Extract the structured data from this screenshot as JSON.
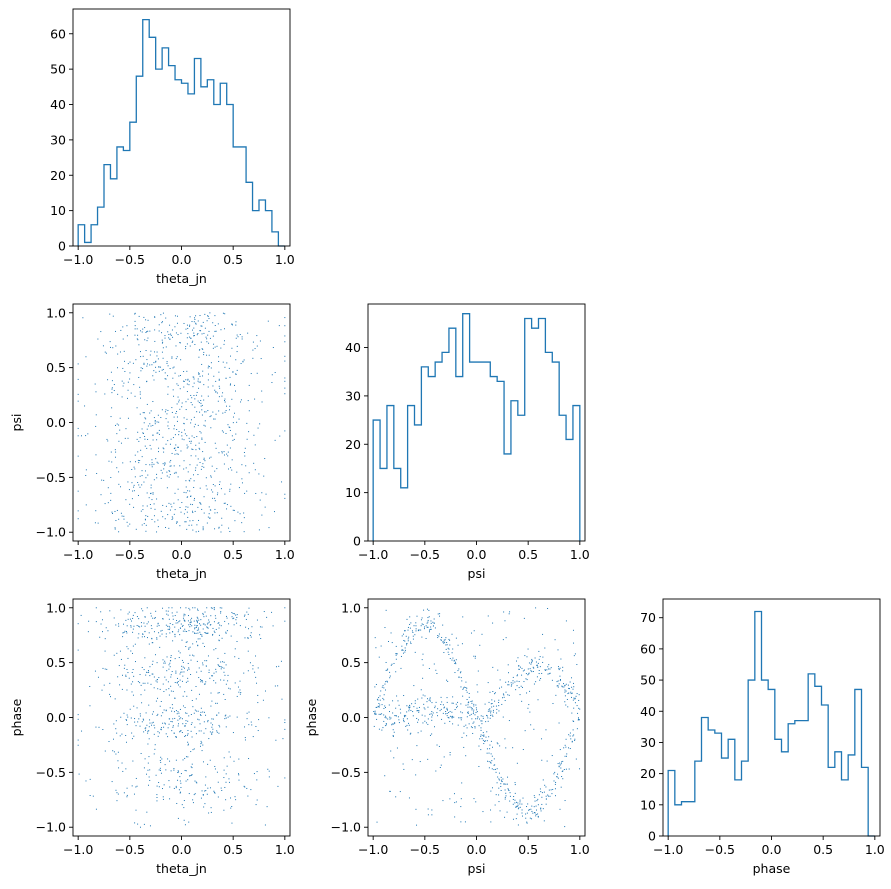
{
  "chart_data": [
    {
      "id": "hist-theta_jn",
      "type": "histogram",
      "xlabel": "theta_jn",
      "ylabel": "",
      "xlim": [
        -1.05,
        1.05
      ],
      "ylim": [
        0,
        67
      ],
      "xticks": [
        -1.0,
        -0.5,
        0.0,
        0.5,
        1.0
      ],
      "xtick_labels": [
        "−1.0",
        "−0.5",
        "0.0",
        "0.5",
        "1.0"
      ],
      "yticks": [
        0,
        10,
        20,
        30,
        40,
        50,
        60
      ],
      "ytick_labels": [
        "0",
        "10",
        "20",
        "30",
        "40",
        "50",
        "60"
      ],
      "bin_range": [
        -1.0,
        1.0
      ],
      "counts": [
        6,
        1,
        6,
        11,
        23,
        19,
        28,
        27,
        35,
        48,
        64,
        59,
        50,
        56,
        51,
        47,
        46,
        43,
        53,
        45,
        47,
        40,
        46,
        40,
        28,
        28,
        18,
        10,
        13,
        10,
        4,
        0
      ],
      "color": "#1f77b4"
    },
    {
      "id": "hist-psi",
      "type": "histogram",
      "xlabel": "psi",
      "ylabel": "",
      "xlim": [
        -1.05,
        1.05
      ],
      "ylim": [
        0,
        49
      ],
      "xticks": [
        -1.0,
        -0.5,
        0.0,
        0.5,
        1.0
      ],
      "xtick_labels": [
        "−1.0",
        "−0.5",
        "0.0",
        "0.5",
        "1.0"
      ],
      "yticks": [
        0,
        10,
        20,
        30,
        40
      ],
      "ytick_labels": [
        "0",
        "10",
        "20",
        "30",
        "40"
      ],
      "bin_range": [
        -1.0,
        1.0
      ],
      "counts": [
        25,
        15,
        28,
        15,
        11,
        28,
        24,
        36,
        34,
        37,
        39,
        44,
        34,
        47,
        37,
        37,
        37,
        34,
        33,
        18,
        29,
        26,
        46,
        44,
        46,
        39,
        37,
        26,
        21,
        28
      ],
      "color": "#1f77b4"
    },
    {
      "id": "hist-phase",
      "type": "histogram",
      "xlabel": "phase",
      "ylabel": "",
      "xlim": [
        -1.05,
        1.05
      ],
      "ylim": [
        0,
        76
      ],
      "xticks": [
        -1.0,
        -0.5,
        0.0,
        0.5,
        1.0
      ],
      "xtick_labels": [
        "−1.0",
        "−0.5",
        "0.0",
        "0.5",
        "1.0"
      ],
      "yticks": [
        0,
        10,
        20,
        30,
        40,
        50,
        60,
        70
      ],
      "ytick_labels": [
        "0",
        "10",
        "20",
        "30",
        "40",
        "50",
        "60",
        "70"
      ],
      "bin_range": [
        -1.0,
        1.0
      ],
      "counts": [
        21,
        10,
        11,
        11,
        24,
        38,
        34,
        33,
        25,
        31,
        18,
        24,
        50,
        72,
        50,
        47,
        31,
        27,
        36,
        37,
        37,
        52,
        48,
        42,
        22,
        27,
        18,
        26,
        47,
        22,
        0
      ],
      "color": "#1f77b4"
    },
    {
      "id": "scatter-theta_jn-psi",
      "type": "scatter",
      "xlabel": "theta_jn",
      "ylabel": "psi",
      "xlim": [
        -1.05,
        1.05
      ],
      "ylim": [
        -1.08,
        1.08
      ],
      "xticks": [
        -1.0,
        -0.5,
        0.0,
        0.5,
        1.0
      ],
      "xtick_labels": [
        "−1.0",
        "−0.5",
        "0.0",
        "0.5",
        "1.0"
      ],
      "yticks": [
        -1.0,
        -0.5,
        0.0,
        0.5,
        1.0
      ],
      "ytick_labels": [
        "−1.0",
        "−0.5",
        "0.0",
        "0.5",
        "1.0"
      ],
      "pattern": "theta_jn-psi",
      "n_points": 1000,
      "color": "#1f77b4"
    },
    {
      "id": "scatter-theta_jn-phase",
      "type": "scatter",
      "xlabel": "theta_jn",
      "ylabel": "phase",
      "xlim": [
        -1.05,
        1.05
      ],
      "ylim": [
        -1.08,
        1.08
      ],
      "xticks": [
        -1.0,
        -0.5,
        0.0,
        0.5,
        1.0
      ],
      "xtick_labels": [
        "−1.0",
        "−0.5",
        "0.0",
        "0.5",
        "1.0"
      ],
      "yticks": [
        -1.0,
        -0.5,
        0.0,
        0.5,
        1.0
      ],
      "ytick_labels": [
        "−1.0",
        "−0.5",
        "0.0",
        "0.5",
        "1.0"
      ],
      "pattern": "theta_jn-phase",
      "n_points": 1000,
      "color": "#1f77b4"
    },
    {
      "id": "scatter-psi-phase",
      "type": "scatter",
      "xlabel": "psi",
      "ylabel": "phase",
      "xlim": [
        -1.05,
        1.05
      ],
      "ylim": [
        -1.08,
        1.08
      ],
      "xticks": [
        -1.0,
        -0.5,
        0.0,
        0.5,
        1.0
      ],
      "xtick_labels": [
        "−1.0",
        "−0.5",
        "0.0",
        "0.5",
        "1.0"
      ],
      "yticks": [
        -1.0,
        -0.5,
        0.0,
        0.5,
        1.0
      ],
      "ytick_labels": [
        "−1.0",
        "−0.5",
        "0.0",
        "0.5",
        "1.0"
      ],
      "pattern": "psi-phase",
      "n_points": 1000,
      "color": "#1f77b4"
    }
  ]
}
